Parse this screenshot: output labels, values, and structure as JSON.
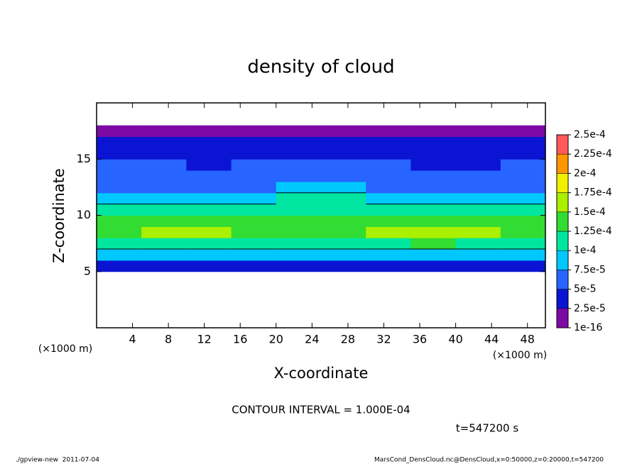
{
  "chart_data": {
    "type": "heatmap",
    "title": "density of cloud",
    "xlabel": "X-coordinate",
    "ylabel": "Z-coordinate",
    "x_unit": "(×1000 m)",
    "y_unit": "(×1000 m)",
    "annotation": "CONTOUR INTERVAL = 1.000E-04",
    "time_label": "t=547200 s",
    "footer_left": "./gpview-new  2011-07-04",
    "footer_right": "MarsCond_DensCloud.nc@DensCloud,x=0:50000,z=0:20000,t=547200",
    "xlim": [
      0,
      50
    ],
    "ylim": [
      0,
      20
    ],
    "xticks": [
      4,
      8,
      12,
      16,
      20,
      24,
      28,
      32,
      36,
      40,
      44,
      48
    ],
    "yticks": [
      5,
      10,
      15
    ],
    "x": [
      2.5,
      7.5,
      12.5,
      17.5,
      22.5,
      27.5,
      32.5,
      37.5,
      42.5,
      47.5
    ],
    "z": [
      4.5,
      5.5,
      6.5,
      7.5,
      8.5,
      9.5,
      10.5,
      11.5,
      12.5,
      13.5,
      14.5,
      15.5,
      16.5,
      17.5
    ],
    "values": [
      [
        null,
        null,
        null,
        null,
        null,
        null,
        null,
        null,
        null,
        null
      ],
      [
        2.8e-05,
        3e-05,
        3.2e-05,
        3e-05,
        2.8e-05,
        3e-05,
        3.2e-05,
        3e-05,
        3e-05,
        2.8e-05
      ],
      [
        8e-05,
        8.5e-05,
        8e-05,
        8e-05,
        8.5e-05,
        8e-05,
        8e-05,
        8.5e-05,
        8e-05,
        8e-05
      ],
      [
        0.000115,
        0.00012,
        0.00012,
        0.000115,
        0.00012,
        0.000115,
        0.00012,
        0.000125,
        0.00012,
        0.000115
      ],
      [
        0.000145,
        0.00015,
        0.000155,
        0.000145,
        0.00014,
        0.000145,
        0.00015,
        0.00016,
        0.00015,
        0.000145
      ],
      [
        0.00013,
        0.000135,
        0.00014,
        0.00013,
        0.000135,
        0.00013,
        0.000135,
        0.00014,
        0.00013,
        0.00013
      ],
      [
        0.0001,
        0.000105,
        0.000105,
        0.0001,
        0.00011,
        0.00011,
        0.000105,
        0.0001,
        0.0001,
        0.000105
      ],
      [
        8e-05,
        8e-05,
        8e-05,
        8.5e-05,
        0.0001,
        0.000105,
        9e-05,
        8e-05,
        7.5e-05,
        8e-05
      ],
      [
        6.5e-05,
        6.5e-05,
        6.5e-05,
        7e-05,
        7.5e-05,
        7.5e-05,
        7e-05,
        6.5e-05,
        6e-05,
        6.5e-05
      ],
      [
        5.5e-05,
        5.5e-05,
        5.5e-05,
        6e-05,
        6e-05,
        6e-05,
        5.5e-05,
        5.5e-05,
        5e-05,
        5.5e-05
      ],
      [
        5e-05,
        5e-05,
        4.5e-05,
        5e-05,
        5e-05,
        5e-05,
        5e-05,
        4.5e-05,
        4.5e-05,
        5e-05
      ],
      [
        4e-05,
        4e-05,
        4e-05,
        4.5e-05,
        4e-05,
        4e-05,
        4e-05,
        4e-05,
        4e-05,
        4e-05
      ],
      [
        2.6e-05,
        2.7e-05,
        2.6e-05,
        2.7e-05,
        2.6e-05,
        2.6e-05,
        2.7e-05,
        2.6e-05,
        2.6e-05,
        2.6e-05
      ],
      [
        1e-16,
        1e-16,
        1e-16,
        1e-16,
        1e-16,
        1e-16,
        1e-16,
        1e-16,
        1e-16,
        1e-16
      ]
    ],
    "colorbar_ticks": [
      1e-16,
      {
        "value": 2.5e-05,
        "label": "2.5e-5"
      },
      {
        "value": 5e-05,
        "label": "5e-5"
      },
      {
        "value": 7.5e-05,
        "label": "7.5e-5"
      },
      {
        "value": 0.0001,
        "label": "1e-4"
      },
      {
        "value": 0.000125,
        "label": "1.25e-4"
      },
      {
        "value": 0.00015,
        "label": "1.5e-4"
      },
      {
        "value": 0.000175,
        "label": "1.75e-4"
      },
      {
        "value": 0.0002,
        "label": "2e-4"
      },
      {
        "value": 0.000225,
        "label": "2.25e-4"
      },
      {
        "value": 0.00025,
        "label": "2.5e-4"
      }
    ],
    "colors": [
      "#7d0aa5",
      "#0a14d2",
      "#2864ff",
      "#00c8ff",
      "#00e6a0",
      "#32dc32",
      "#aaf000",
      "#f0f000",
      "#ff9600",
      "#ff5a5a"
    ]
  }
}
